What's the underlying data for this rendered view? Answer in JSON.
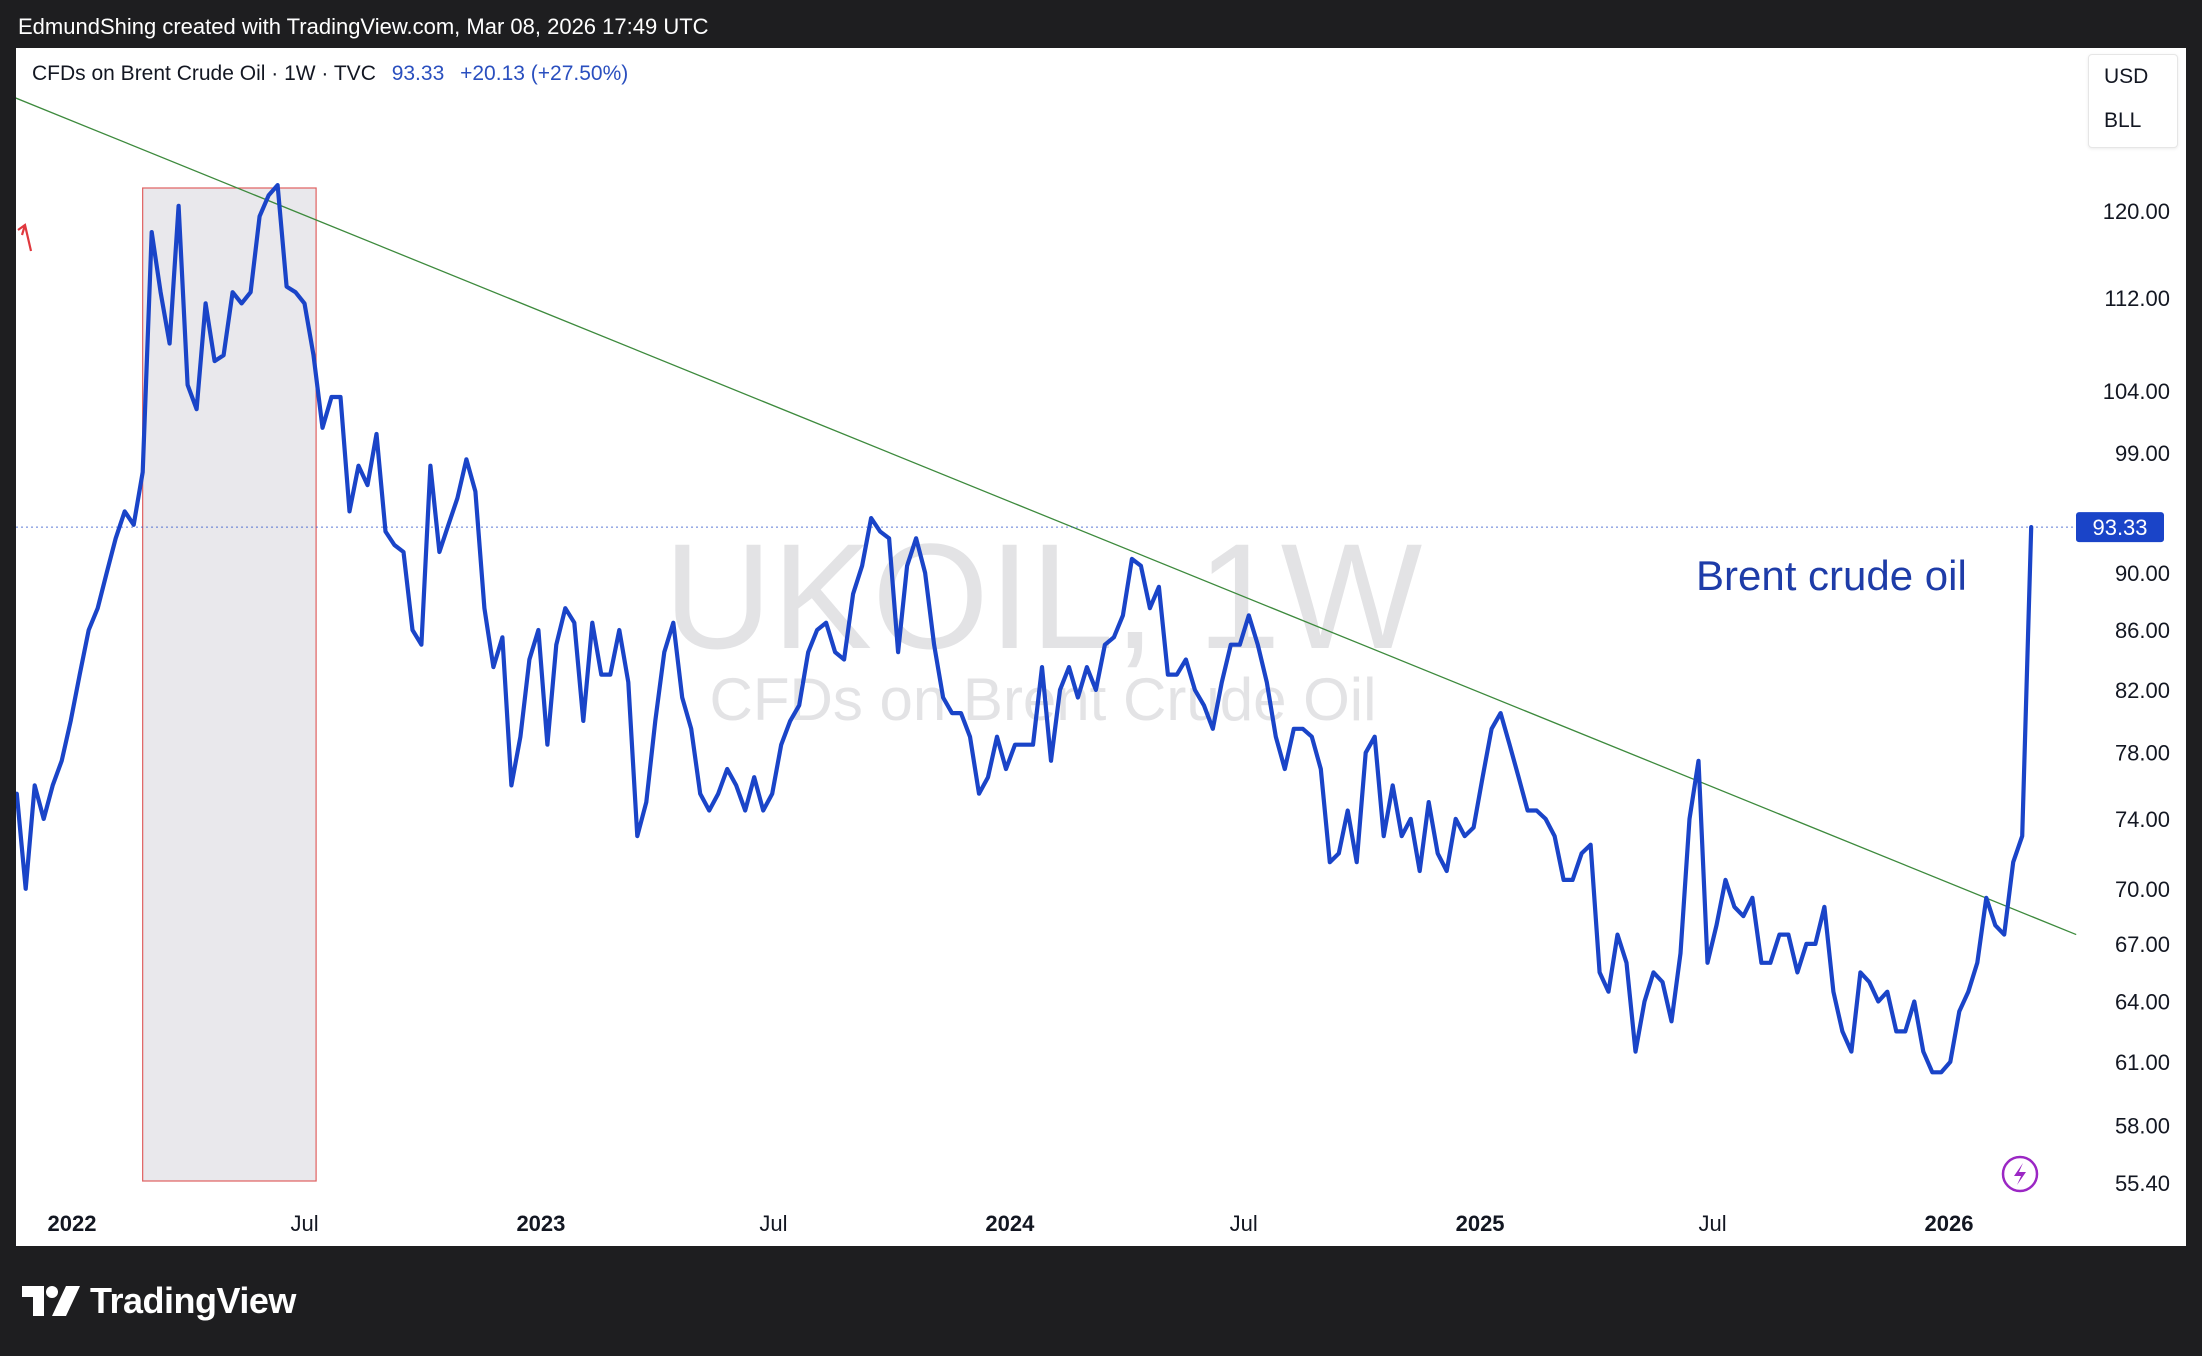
{
  "attribution": "EdmundShing created with TradingView.com, Mar 08, 2026 17:49 UTC",
  "legend": {
    "symbol": "CFDs on Brent Crude Oil · 1W · TVC",
    "last": "93.33",
    "change": "+20.13 (+27.50%)"
  },
  "units": [
    "USD",
    "BLL"
  ],
  "watermark": {
    "line1": "UKOIL, 1W",
    "line2": "CFDs on Brent Crude Oil"
  },
  "brand": "TradingView",
  "colors": {
    "line": "#1a44c8",
    "trendline": "#3d8a3d",
    "highlight_border": "#e06060",
    "price_label": "#1a44c8"
  },
  "icons": {
    "replay": "lightning-icon",
    "alert": "arrow-up-icon"
  },
  "chart_data": {
    "type": "line",
    "scale": "log",
    "title": "",
    "annotation": "Brent crude oil",
    "last_price_label": "93.33",
    "ylim": [
      55.4,
      130
    ],
    "y_ticks": [
      "120.00",
      "112.00",
      "104.00",
      "99.00",
      "90.00",
      "86.00",
      "82.00",
      "78.00",
      "74.00",
      "70.00",
      "67.00",
      "64.00",
      "61.00",
      "58.00",
      "55.40"
    ],
    "x_ticks": [
      {
        "label": "2022",
        "date": "2022-01-01",
        "bold": true
      },
      {
        "label": "Jul",
        "date": "2022-07-01",
        "bold": false
      },
      {
        "label": "2023",
        "date": "2023-01-01",
        "bold": true
      },
      {
        "label": "Jul",
        "date": "2023-07-01",
        "bold": false
      },
      {
        "label": "2024",
        "date": "2024-01-01",
        "bold": true
      },
      {
        "label": "Jul",
        "date": "2024-07-01",
        "bold": false
      },
      {
        "label": "2025",
        "date": "2025-01-01",
        "bold": true
      },
      {
        "label": "Jul",
        "date": "2025-07-01",
        "bold": false
      },
      {
        "label": "2026",
        "date": "2026-01-01",
        "bold": true
      }
    ],
    "highlight_range": {
      "from": "2022-02-25",
      "to": "2022-07-10"
    },
    "trendline": [
      {
        "date": "2021-11-05",
        "value": 132.0
      },
      {
        "date": "2026-04-10",
        "value": 67.5
      }
    ],
    "series": [
      {
        "values": [
          [
            "2021-11-19",
            75.5
          ],
          [
            "2021-11-26",
            70.0
          ],
          [
            "2021-12-03",
            76.0
          ],
          [
            "2021-12-10",
            74.0
          ],
          [
            "2021-12-17",
            76.0
          ],
          [
            "2021-12-24",
            77.5
          ],
          [
            "2021-12-31",
            80.0
          ],
          [
            "2022-01-07",
            83.0
          ],
          [
            "2022-01-14",
            86.0
          ],
          [
            "2022-01-21",
            87.5
          ],
          [
            "2022-01-28",
            90.0
          ],
          [
            "2022-02-04",
            92.5
          ],
          [
            "2022-02-11",
            94.5
          ],
          [
            "2022-02-18",
            93.5
          ],
          [
            "2022-02-25",
            97.5
          ],
          [
            "2022-03-04",
            118.0
          ],
          [
            "2022-03-11",
            112.5
          ],
          [
            "2022-03-18",
            108.0
          ],
          [
            "2022-03-25",
            120.5
          ],
          [
            "2022-04-01",
            104.5
          ],
          [
            "2022-04-08",
            102.5
          ],
          [
            "2022-04-15",
            111.5
          ],
          [
            "2022-04-22",
            106.5
          ],
          [
            "2022-04-29",
            107.0
          ],
          [
            "2022-05-06",
            112.5
          ],
          [
            "2022-05-13",
            111.5
          ],
          [
            "2022-05-20",
            112.5
          ],
          [
            "2022-05-27",
            119.5
          ],
          [
            "2022-06-03",
            121.5
          ],
          [
            "2022-06-10",
            122.5
          ],
          [
            "2022-06-17",
            113.0
          ],
          [
            "2022-06-24",
            112.5
          ],
          [
            "2022-07-01",
            111.5
          ],
          [
            "2022-07-08",
            107.0
          ],
          [
            "2022-07-15",
            101.0
          ],
          [
            "2022-07-22",
            103.5
          ],
          [
            "2022-07-29",
            103.5
          ],
          [
            "2022-08-05",
            94.5
          ],
          [
            "2022-08-12",
            98.0
          ],
          [
            "2022-08-19",
            96.5
          ],
          [
            "2022-08-26",
            100.5
          ],
          [
            "2022-09-02",
            93.0
          ],
          [
            "2022-09-09",
            92.0
          ],
          [
            "2022-09-16",
            91.5
          ],
          [
            "2022-09-23",
            86.0
          ],
          [
            "2022-09-30",
            85.0
          ],
          [
            "2022-10-07",
            98.0
          ],
          [
            "2022-10-14",
            91.5
          ],
          [
            "2022-10-21",
            93.5
          ],
          [
            "2022-10-28",
            95.5
          ],
          [
            "2022-11-04",
            98.5
          ],
          [
            "2022-11-11",
            96.0
          ],
          [
            "2022-11-18",
            87.5
          ],
          [
            "2022-11-25",
            83.5
          ],
          [
            "2022-12-02",
            85.5
          ],
          [
            "2022-12-09",
            76.0
          ],
          [
            "2022-12-16",
            79.0
          ],
          [
            "2022-12-23",
            84.0
          ],
          [
            "2022-12-30",
            86.0
          ],
          [
            "2023-01-06",
            78.5
          ],
          [
            "2023-01-13",
            85.0
          ],
          [
            "2023-01-20",
            87.5
          ],
          [
            "2023-01-27",
            86.5
          ],
          [
            "2023-02-03",
            80.0
          ],
          [
            "2023-02-10",
            86.5
          ],
          [
            "2023-02-17",
            83.0
          ],
          [
            "2023-02-24",
            83.0
          ],
          [
            "2023-03-03",
            86.0
          ],
          [
            "2023-03-10",
            82.5
          ],
          [
            "2023-03-17",
            73.0
          ],
          [
            "2023-03-24",
            75.0
          ],
          [
            "2023-03-31",
            80.0
          ],
          [
            "2023-04-07",
            84.5
          ],
          [
            "2023-04-14",
            86.5
          ],
          [
            "2023-04-21",
            81.5
          ],
          [
            "2023-04-28",
            79.5
          ],
          [
            "2023-05-05",
            75.5
          ],
          [
            "2023-05-12",
            74.5
          ],
          [
            "2023-05-19",
            75.5
          ],
          [
            "2023-05-26",
            77.0
          ],
          [
            "2023-06-02",
            76.0
          ],
          [
            "2023-06-09",
            74.5
          ],
          [
            "2023-06-16",
            76.5
          ],
          [
            "2023-06-23",
            74.5
          ],
          [
            "2023-06-30",
            75.5
          ],
          [
            "2023-07-07",
            78.5
          ],
          [
            "2023-07-14",
            80.0
          ],
          [
            "2023-07-21",
            81.0
          ],
          [
            "2023-07-28",
            84.5
          ],
          [
            "2023-08-04",
            86.0
          ],
          [
            "2023-08-11",
            86.5
          ],
          [
            "2023-08-18",
            84.5
          ],
          [
            "2023-08-25",
            84.0
          ],
          [
            "2023-09-01",
            88.5
          ],
          [
            "2023-09-08",
            90.5
          ],
          [
            "2023-09-15",
            94.0
          ],
          [
            "2023-09-22",
            93.0
          ],
          [
            "2023-09-29",
            92.5
          ],
          [
            "2023-10-06",
            84.5
          ],
          [
            "2023-10-13",
            90.5
          ],
          [
            "2023-10-20",
            92.5
          ],
          [
            "2023-10-27",
            90.0
          ],
          [
            "2023-11-03",
            85.0
          ],
          [
            "2023-11-10",
            81.5
          ],
          [
            "2023-11-17",
            80.5
          ],
          [
            "2023-11-24",
            80.5
          ],
          [
            "2023-12-01",
            79.0
          ],
          [
            "2023-12-08",
            75.5
          ],
          [
            "2023-12-15",
            76.5
          ],
          [
            "2023-12-22",
            79.0
          ],
          [
            "2023-12-29",
            77.0
          ],
          [
            "2024-01-05",
            78.5
          ],
          [
            "2024-01-12",
            78.5
          ],
          [
            "2024-01-19",
            78.5
          ],
          [
            "2024-01-26",
            83.5
          ],
          [
            "2024-02-02",
            77.5
          ],
          [
            "2024-02-09",
            82.0
          ],
          [
            "2024-02-16",
            83.5
          ],
          [
            "2024-02-23",
            81.5
          ],
          [
            "2024-03-01",
            83.5
          ],
          [
            "2024-03-08",
            82.0
          ],
          [
            "2024-03-15",
            85.0
          ],
          [
            "2024-03-22",
            85.5
          ],
          [
            "2024-03-29",
            87.0
          ],
          [
            "2024-04-05",
            91.0
          ],
          [
            "2024-04-12",
            90.5
          ],
          [
            "2024-04-19",
            87.5
          ],
          [
            "2024-04-26",
            89.0
          ],
          [
            "2024-05-03",
            83.0
          ],
          [
            "2024-05-10",
            83.0
          ],
          [
            "2024-05-17",
            84.0
          ],
          [
            "2024-05-24",
            82.0
          ],
          [
            "2024-05-31",
            81.0
          ],
          [
            "2024-06-07",
            79.5
          ],
          [
            "2024-06-14",
            82.5
          ],
          [
            "2024-06-21",
            85.0
          ],
          [
            "2024-06-28",
            85.0
          ],
          [
            "2024-07-05",
            87.0
          ],
          [
            "2024-07-12",
            85.0
          ],
          [
            "2024-07-19",
            82.5
          ],
          [
            "2024-07-26",
            79.0
          ],
          [
            "2024-08-02",
            77.0
          ],
          [
            "2024-08-09",
            79.5
          ],
          [
            "2024-08-16",
            79.5
          ],
          [
            "2024-08-23",
            79.0
          ],
          [
            "2024-08-30",
            77.0
          ],
          [
            "2024-09-06",
            71.5
          ],
          [
            "2024-09-13",
            72.0
          ],
          [
            "2024-09-20",
            74.5
          ],
          [
            "2024-09-27",
            71.5
          ],
          [
            "2024-10-04",
            78.0
          ],
          [
            "2024-10-11",
            79.0
          ],
          [
            "2024-10-18",
            73.0
          ],
          [
            "2024-10-25",
            76.0
          ],
          [
            "2024-11-01",
            73.0
          ],
          [
            "2024-11-08",
            74.0
          ],
          [
            "2024-11-15",
            71.0
          ],
          [
            "2024-11-22",
            75.0
          ],
          [
            "2024-11-29",
            72.0
          ],
          [
            "2024-12-06",
            71.0
          ],
          [
            "2024-12-13",
            74.0
          ],
          [
            "2024-12-20",
            73.0
          ],
          [
            "2024-12-27",
            73.5
          ],
          [
            "2025-01-03",
            76.5
          ],
          [
            "2025-01-10",
            79.5
          ],
          [
            "2025-01-17",
            80.5
          ],
          [
            "2025-01-24",
            78.5
          ],
          [
            "2025-01-31",
            76.5
          ],
          [
            "2025-02-07",
            74.5
          ],
          [
            "2025-02-14",
            74.5
          ],
          [
            "2025-02-21",
            74.0
          ],
          [
            "2025-02-28",
            73.0
          ],
          [
            "2025-03-07",
            70.5
          ],
          [
            "2025-03-14",
            70.5
          ],
          [
            "2025-03-21",
            72.0
          ],
          [
            "2025-03-28",
            72.5
          ],
          [
            "2025-04-04",
            65.5
          ],
          [
            "2025-04-11",
            64.5
          ],
          [
            "2025-04-18",
            67.5
          ],
          [
            "2025-04-25",
            66.0
          ],
          [
            "2025-05-02",
            61.5
          ],
          [
            "2025-05-09",
            64.0
          ],
          [
            "2025-05-16",
            65.5
          ],
          [
            "2025-05-23",
            65.0
          ],
          [
            "2025-05-30",
            63.0
          ],
          [
            "2025-06-06",
            66.5
          ],
          [
            "2025-06-13",
            74.0
          ],
          [
            "2025-06-20",
            77.5
          ],
          [
            "2025-06-27",
            66.0
          ],
          [
            "2025-07-04",
            68.0
          ],
          [
            "2025-07-11",
            70.5
          ],
          [
            "2025-07-18",
            69.0
          ],
          [
            "2025-07-25",
            68.5
          ],
          [
            "2025-08-01",
            69.5
          ],
          [
            "2025-08-08",
            66.0
          ],
          [
            "2025-08-15",
            66.0
          ],
          [
            "2025-08-22",
            67.5
          ],
          [
            "2025-08-29",
            67.5
          ],
          [
            "2025-09-05",
            65.5
          ],
          [
            "2025-09-12",
            67.0
          ],
          [
            "2025-09-19",
            67.0
          ],
          [
            "2025-09-26",
            69.0
          ],
          [
            "2025-10-03",
            64.5
          ],
          [
            "2025-10-10",
            62.5
          ],
          [
            "2025-10-17",
            61.5
          ],
          [
            "2025-10-24",
            65.5
          ],
          [
            "2025-10-31",
            65.0
          ],
          [
            "2025-11-07",
            64.0
          ],
          [
            "2025-11-14",
            64.5
          ],
          [
            "2025-11-21",
            62.5
          ],
          [
            "2025-11-28",
            62.5
          ],
          [
            "2025-12-05",
            64.0
          ],
          [
            "2025-12-12",
            61.5
          ],
          [
            "2025-12-19",
            60.5
          ],
          [
            "2025-12-26",
            60.5
          ],
          [
            "2026-01-02",
            61.0
          ],
          [
            "2026-01-09",
            63.5
          ],
          [
            "2026-01-16",
            64.5
          ],
          [
            "2026-01-23",
            66.0
          ],
          [
            "2026-01-30",
            69.5
          ],
          [
            "2026-02-06",
            68.0
          ],
          [
            "2026-02-13",
            67.5
          ],
          [
            "2026-02-20",
            71.5
          ],
          [
            "2026-02-27",
            73.0
          ],
          [
            "2026-03-06",
            93.33
          ]
        ]
      }
    ]
  }
}
